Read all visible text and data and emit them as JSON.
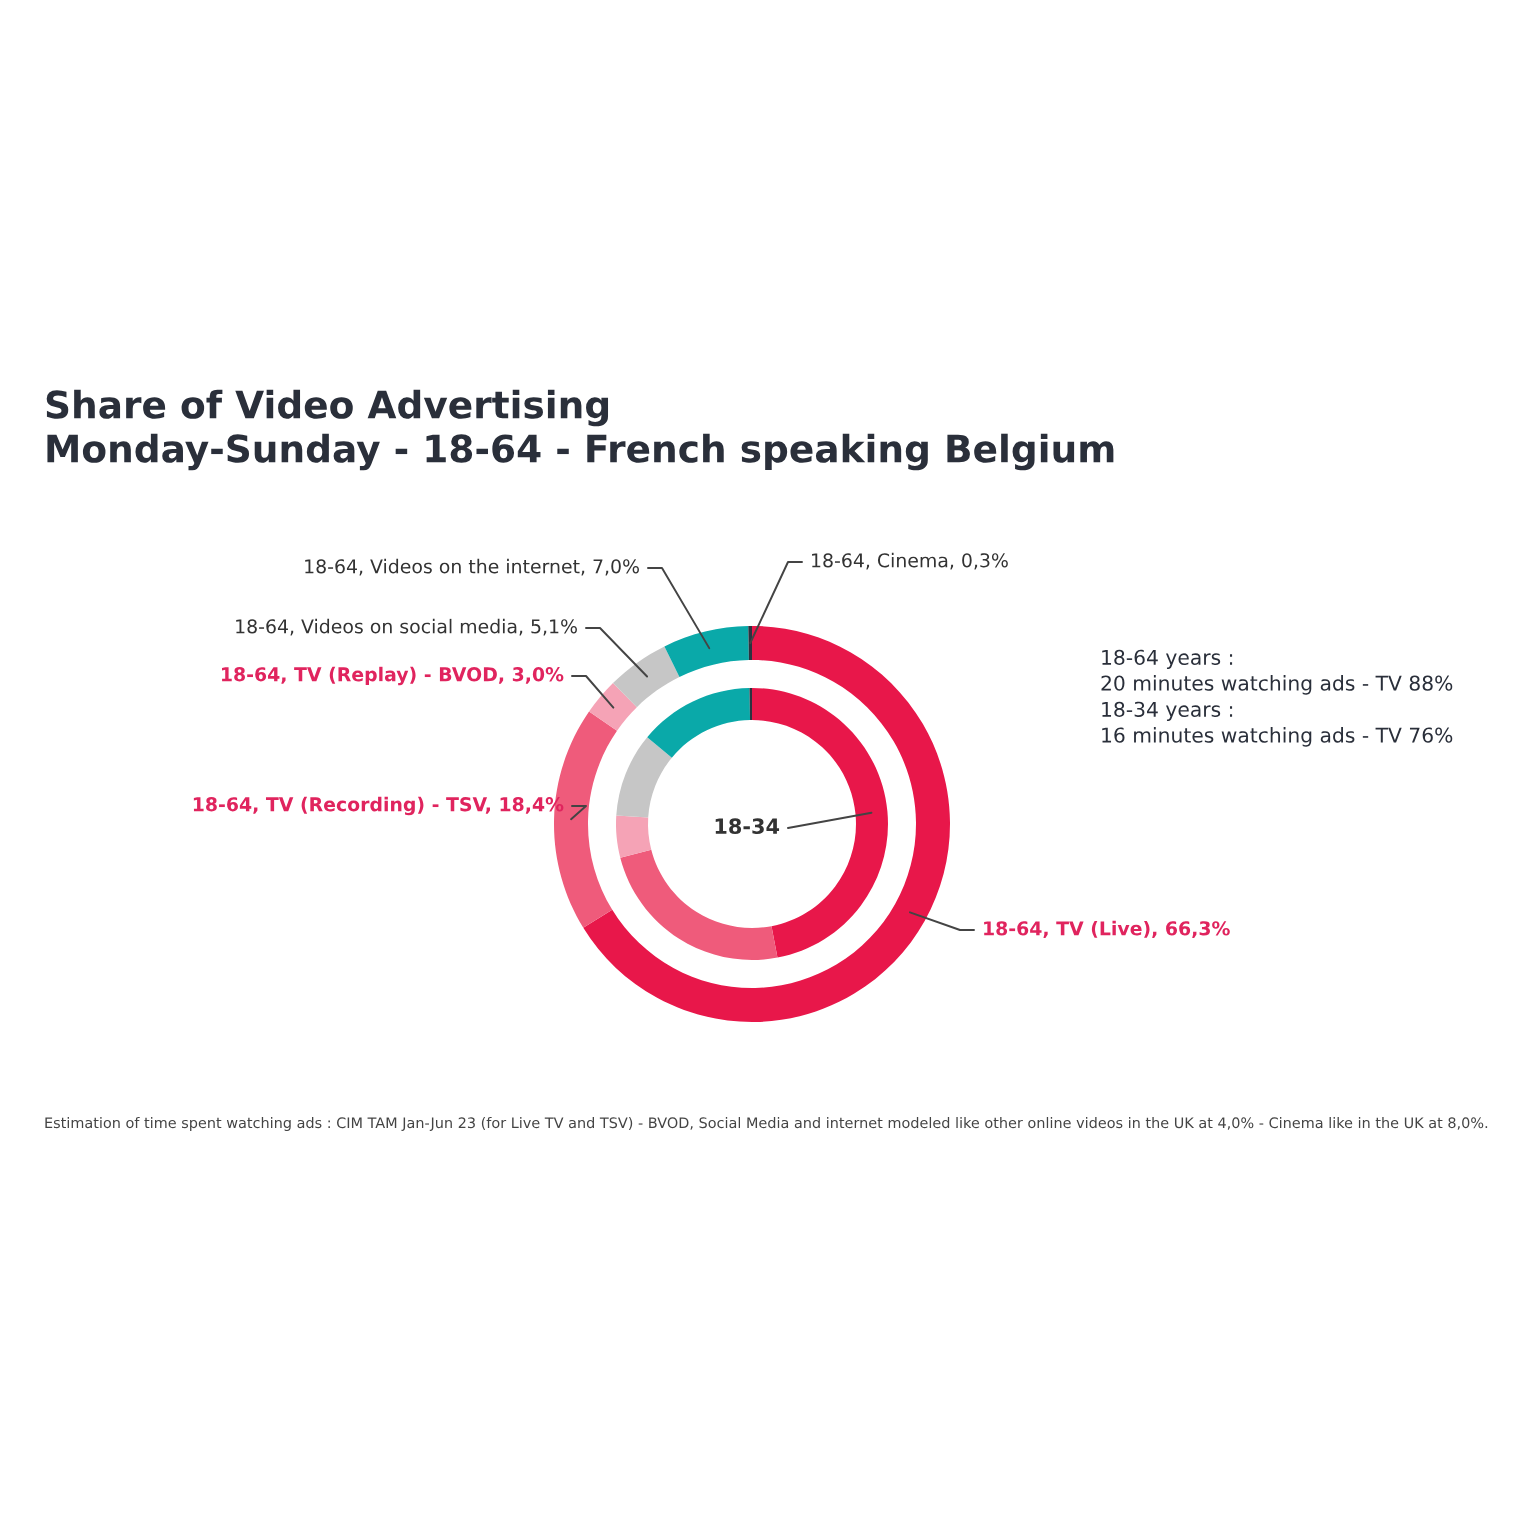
{
  "chart_data": {
    "type": "donut",
    "title": "Share of Video Advertising",
    "subtitle": "Monday-Sunday - 18-64 - French speaking Belgium",
    "categories": [
      "18-64, TV (Live), 66,3%",
      "18-64, TV (Recording) - TSV, 18,4%",
      "18-64, TV (Replay) - BVOD, 3,0%",
      "18-64, Videos on social media, 5,1%",
      "18-64, Videos on the internet, 7,0%",
      "18-64, Cinema, 0,3%"
    ],
    "series": [
      {
        "values": [
          66.3,
          18.4,
          3.0,
          5.1,
          7.0,
          0.3
        ],
        "colors": [
          "#e8174a",
          "#ef5b7b",
          "#f5a3b6",
          "#c6c6c6",
          "#0aa9a9",
          "#2b3340"
        ]
      },
      {
        "name": "18-34",
        "values": [
          47,
          24,
          5,
          10,
          13.7,
          0.3
        ],
        "colors": [
          "#e8174a",
          "#ef5b7b",
          "#f5a3b6",
          "#c6c6c6",
          "#0aa9a9",
          "#2b3340"
        ]
      }
    ],
    "annotations": [
      "18-64 years :\n20 minutes watching ads - TV 88%",
      "18-34 years :\n16 minutes watching ads - TV 76%",
      "Estimation of time spent watching ads : CIM TAM Jan-Jun 23 (for Live TV and TSV) - BVOD, Social Media and internet modeled like other online videos in the UK at 4,0% - Cinema like in the UK at 8,0%."
    ]
  }
}
